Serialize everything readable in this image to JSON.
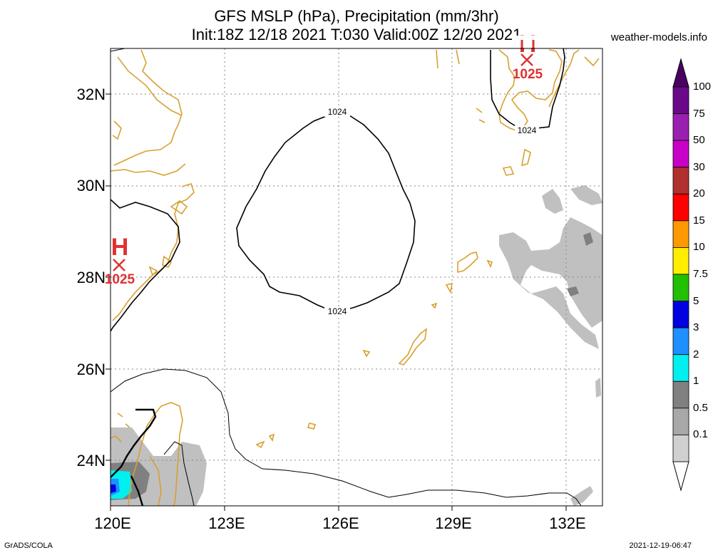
{
  "title": {
    "line1": "GFS MSLP (hPa), Precipitation (mm/3hr)",
    "line2": "Init:18Z 12/18 2021 T:030 Valid:00Z 12/20 2021"
  },
  "site": "weather-models.info",
  "footer": {
    "left": "GrADS/COLA",
    "right": "2021-12-19-06:47"
  },
  "map": {
    "lat_labels": [
      "32N",
      "30N",
      "28N",
      "26N",
      "24N"
    ],
    "lon_labels": [
      "120E",
      "123E",
      "126E",
      "129E",
      "132E"
    ],
    "isobar_labels": [
      "1024",
      "1024",
      "1024"
    ],
    "highs": [
      {
        "symbol": "H",
        "value": "1025"
      },
      {
        "symbol": "H",
        "value": "1025"
      }
    ],
    "colors": {
      "coast": "#d8a030",
      "isobar": "#000000",
      "high": "#e03030",
      "grid": "#888888"
    }
  },
  "colorbar": {
    "labels": [
      "100",
      "75",
      "50",
      "30",
      "20",
      "15",
      "10",
      "7.5",
      "5",
      "3",
      "2",
      "1",
      "0.5",
      "0.1"
    ],
    "colors": [
      "#6a0a8a",
      "#9a20b0",
      "#c800c8",
      "#b03030",
      "#ff0000",
      "#ff9900",
      "#ffee00",
      "#22c000",
      "#0000e0",
      "#1e90ff",
      "#00f0f0",
      "#808080",
      "#a8a8a8",
      "#d0d0d0"
    ]
  }
}
